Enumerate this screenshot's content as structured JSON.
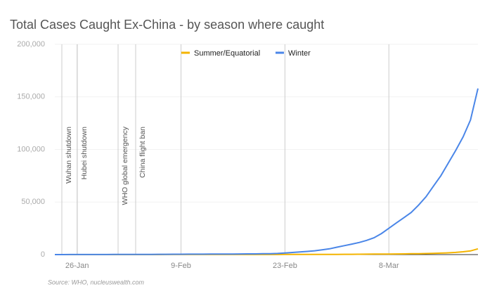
{
  "chart_data": {
    "type": "line",
    "title": "Total Cases Caught Ex-China - by season where caught",
    "source": "Source: WHO, nucleuswealth.com",
    "annotations": [
      "Wuhan shutdown",
      "Hubei shutdown",
      "WHO global emergency",
      "China flight ban"
    ],
    "categories": [
      null,
      null,
      null,
      "26-Jan",
      null,
      null,
      null,
      null,
      null,
      null,
      null,
      null,
      null,
      null,
      null,
      null,
      null,
      "9-Feb",
      null,
      null,
      null,
      null,
      null,
      null,
      null,
      null,
      null,
      null,
      null,
      null,
      null,
      "23-Feb",
      null,
      null,
      null,
      null,
      null,
      null,
      null,
      null,
      null,
      null,
      null,
      null,
      null,
      "8-Mar",
      null,
      null,
      null,
      null,
      null,
      null,
      null,
      null,
      null,
      null,
      null,
      null
    ],
    "series": [
      {
        "name": "Summer/Equatorial",
        "color": "#f4b400",
        "values": [
          0,
          0,
          5,
          5,
          10,
          10,
          10,
          15,
          15,
          20,
          20,
          25,
          25,
          30,
          30,
          35,
          35,
          40,
          40,
          45,
          45,
          50,
          50,
          55,
          60,
          65,
          70,
          75,
          80,
          90,
          100,
          110,
          120,
          130,
          140,
          150,
          160,
          180,
          200,
          250,
          300,
          350,
          400,
          450,
          500,
          550,
          600,
          700,
          800,
          900,
          1000,
          1200,
          1400,
          1700,
          2100,
          2700,
          3500,
          5500
        ]
      },
      {
        "name": "Winter",
        "color": "#4a86e8",
        "values": [
          10,
          20,
          40,
          50,
          60,
          70,
          80,
          100,
          120,
          140,
          160,
          180,
          200,
          230,
          260,
          290,
          320,
          350,
          380,
          400,
          430,
          460,
          490,
          520,
          560,
          600,
          650,
          700,
          780,
          900,
          1100,
          1500,
          2000,
          2500,
          3000,
          3600,
          4500,
          5500,
          7000,
          8500,
          10000,
          11500,
          13500,
          16000,
          20000,
          25000,
          30000,
          35000,
          40000,
          47000,
          55000,
          65000,
          75000,
          87000,
          99000,
          112000,
          128000,
          158000
        ]
      }
    ],
    "ylim": [
      0,
      200000
    ],
    "yticks": [
      0,
      {
        "value": 50000,
        "label": "50,000"
      },
      {
        "value": 100000,
        "label": "100,000"
      },
      {
        "value": 150000,
        "label": "150,000"
      },
      {
        "value": 200000,
        "label": "200,000"
      }
    ],
    "grid": true,
    "legend": "top"
  }
}
